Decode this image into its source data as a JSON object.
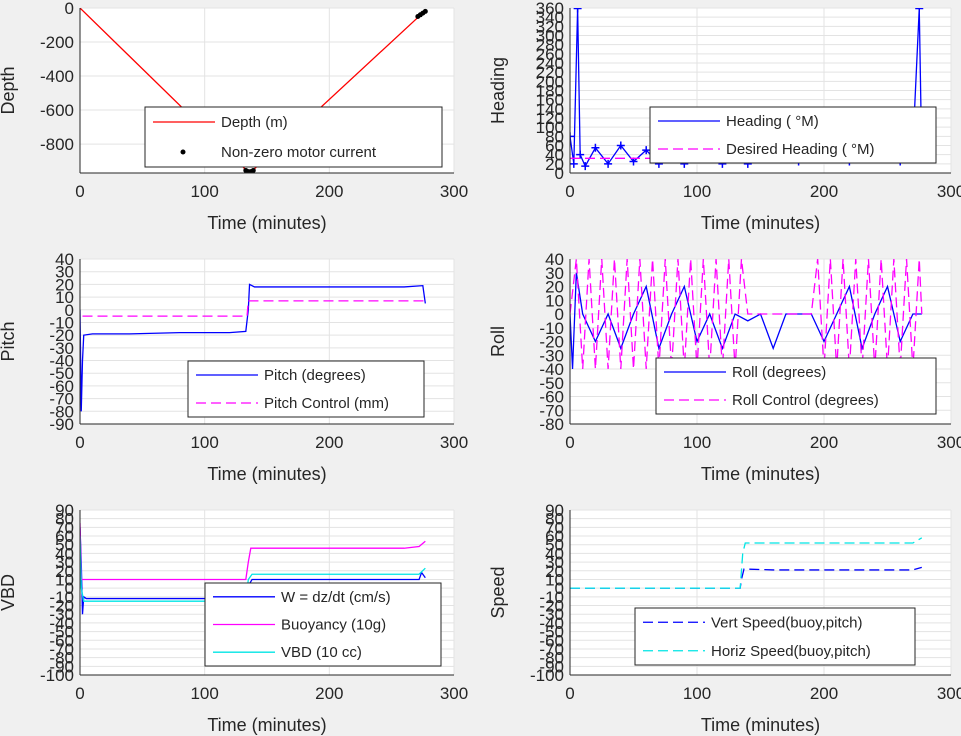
{
  "chart_data": [
    {
      "type": "line",
      "xlabel": "Time (minutes)",
      "ylabel": "Depth",
      "xlim": [
        0,
        300
      ],
      "ylim": [
        -970,
        0
      ],
      "xticks": [
        "0",
        "100",
        "200",
        "300"
      ],
      "yticks": [
        "0",
        "-200",
        "-400",
        "-600",
        "-800"
      ],
      "grid": true,
      "legend_position": "bottom-right",
      "series": [
        {
          "name": "Depth (m)",
          "color": "#ff0000",
          "style": "solid",
          "x": [
            0,
            135,
            137,
            277
          ],
          "y": [
            0,
            -965,
            -965,
            -15
          ]
        },
        {
          "name": "Non-zero motor current",
          "color": "#000000",
          "style": "marker",
          "x": [
            133,
            135,
            137,
            139,
            271,
            273,
            275,
            277
          ],
          "y": [
            -955,
            -962,
            -962,
            -955,
            -50,
            -40,
            -30,
            -20
          ]
        }
      ]
    },
    {
      "type": "line",
      "xlabel": "Time (minutes)",
      "ylabel": "Heading",
      "xlim": [
        0,
        300
      ],
      "ylim": [
        0,
        360
      ],
      "xticks": [
        "0",
        "100",
        "200",
        "300"
      ],
      "yticks": [
        "0",
        "20",
        "40",
        "60",
        "80",
        "100",
        "120",
        "140",
        "160",
        "180",
        "200",
        "220",
        "240",
        "260",
        "280",
        "300",
        "320",
        "340",
        "360"
      ],
      "grid": true,
      "legend_position": "bottom-right",
      "series": [
        {
          "name": "Heading ( °M)",
          "color": "#0000ff",
          "style": "marker-line",
          "x": [
            0,
            3,
            6,
            8,
            12,
            20,
            30,
            40,
            50,
            60,
            70,
            80,
            85,
            88,
            90,
            95,
            100,
            110,
            120,
            130,
            135,
            140,
            150,
            160,
            170,
            180,
            190,
            200,
            210,
            220,
            230,
            240,
            250,
            260,
            270,
            275,
            277
          ],
          "y": [
            80,
            20,
            359,
            40,
            15,
            55,
            20,
            60,
            25,
            50,
            20,
            70,
            120,
            60,
            20,
            90,
            30,
            60,
            20,
            55,
            90,
            20,
            50,
            30,
            45,
            25,
            50,
            30,
            45,
            25,
            50,
            30,
            45,
            25,
            60,
            359,
            30
          ]
        },
        {
          "name": "Desired Heading ( °M)",
          "color": "#ff00ff",
          "style": "dashed",
          "x": [
            0,
            50,
            100,
            150,
            200,
            250,
            277
          ],
          "y": [
            32,
            32,
            32,
            32,
            32,
            32,
            32
          ]
        }
      ]
    },
    {
      "type": "line",
      "xlabel": "Time (minutes)",
      "ylabel": "Pitch",
      "xlim": [
        0,
        300
      ],
      "ylim": [
        -90,
        40
      ],
      "xticks": [
        "0",
        "100",
        "200",
        "300"
      ],
      "yticks": [
        "40",
        "30",
        "20",
        "10",
        "0",
        "-10",
        "-20",
        "-30",
        "-40",
        "-50",
        "-60",
        "-70",
        "-80",
        "-90"
      ],
      "grid": true,
      "legend_position": "bottom-right",
      "series": [
        {
          "name": "Pitch (degrees)",
          "color": "#0000ff",
          "style": "solid",
          "x": [
            0,
            1,
            2,
            3,
            10,
            40,
            80,
            120,
            133,
            135,
            136,
            140,
            180,
            220,
            260,
            275,
            277
          ],
          "y": [
            0,
            -80,
            -40,
            -20,
            -19,
            -19,
            -18,
            -18,
            -17,
            0,
            20,
            18,
            18,
            18,
            18,
            19,
            5
          ]
        },
        {
          "name": "Pitch Control (mm)",
          "color": "#ff00ff",
          "style": "dashed",
          "x": [
            2,
            134,
            135,
            277
          ],
          "y": [
            -5,
            -5,
            7,
            7
          ]
        }
      ]
    },
    {
      "type": "line",
      "xlabel": "Time (minutes)",
      "ylabel": "Roll",
      "xlim": [
        0,
        300
      ],
      "ylim": [
        -80,
        40
      ],
      "xticks": [
        "0",
        "100",
        "200",
        "300"
      ],
      "yticks": [
        "40",
        "30",
        "20",
        "10",
        "0",
        "-10",
        "-20",
        "-30",
        "-40",
        "-50",
        "-60",
        "-70",
        "-80"
      ],
      "grid": true,
      "legend_position": "bottom-right",
      "series": [
        {
          "name": "Roll (degrees)",
          "color": "#0000ff",
          "style": "solid",
          "x": [
            0,
            2,
            5,
            10,
            20,
            30,
            40,
            50,
            60,
            70,
            80,
            90,
            100,
            110,
            120,
            130,
            140,
            150,
            160,
            170,
            180,
            190,
            200,
            210,
            220,
            230,
            240,
            250,
            260,
            270,
            277
          ],
          "y": [
            0,
            -40,
            30,
            0,
            -20,
            0,
            -25,
            0,
            20,
            -25,
            0,
            20,
            -20,
            0,
            -25,
            0,
            -5,
            0,
            -25,
            0,
            0,
            0,
            -20,
            0,
            20,
            -25,
            0,
            20,
            -20,
            0,
            0
          ]
        },
        {
          "name": "Roll Control (degrees)",
          "color": "#ff00ff",
          "style": "dashed",
          "x": [
            0,
            5,
            10,
            15,
            20,
            25,
            30,
            35,
            40,
            45,
            50,
            55,
            60,
            65,
            70,
            75,
            80,
            85,
            90,
            95,
            100,
            105,
            110,
            115,
            120,
            125,
            130,
            135,
            140,
            150,
            160,
            170,
            180,
            190,
            195,
            200,
            205,
            210,
            215,
            220,
            225,
            230,
            235,
            240,
            245,
            250,
            255,
            260,
            265,
            270,
            275,
            277
          ],
          "y": [
            0,
            40,
            -40,
            40,
            -40,
            40,
            -40,
            40,
            -40,
            40,
            -40,
            40,
            -40,
            40,
            -40,
            40,
            -40,
            40,
            -40,
            40,
            -40,
            40,
            -40,
            40,
            -40,
            40,
            -40,
            40,
            0,
            0,
            0,
            0,
            0,
            0,
            40,
            -40,
            40,
            -40,
            40,
            -40,
            40,
            -40,
            40,
            -40,
            40,
            -40,
            40,
            -40,
            40,
            -40,
            40,
            0
          ]
        }
      ]
    },
    {
      "type": "line",
      "xlabel": "Time (minutes)",
      "ylabel": "VBD",
      "xlim": [
        0,
        300
      ],
      "ylim": [
        -100,
        90
      ],
      "xticks": [
        "0",
        "100",
        "200",
        "300"
      ],
      "yticks": [
        "90",
        "80",
        "70",
        "60",
        "50",
        "40",
        "30",
        "20",
        "10",
        "0",
        "-10",
        "-20",
        "-30",
        "-40",
        "-50",
        "-60",
        "-70",
        "-80",
        "-90",
        "-100"
      ],
      "grid": true,
      "legend_position": "bottom-right",
      "series": [
        {
          "name": "W = dz/dt (cm/s)",
          "color": "#0000ff",
          "style": "solid",
          "x": [
            0,
            1,
            2,
            3,
            5,
            20,
            60,
            100,
            133,
            134,
            136,
            138,
            180,
            220,
            260,
            272,
            274,
            277
          ],
          "y": [
            70,
            30,
            -30,
            -10,
            -12,
            -12,
            -12,
            -12,
            -12,
            -5,
            5,
            10,
            10,
            10,
            10,
            10,
            18,
            12
          ]
        },
        {
          "name": "Buoyancy (10g)",
          "color": "#ff00ff",
          "style": "solid",
          "x": [
            0,
            1,
            3,
            133,
            135,
            137,
            180,
            220,
            260,
            272,
            277
          ],
          "y": [
            75,
            10,
            10,
            10,
            30,
            46,
            46,
            46,
            46,
            48,
            54
          ]
        },
        {
          "name": "VBD (10 cc)",
          "color": "#00e5e5",
          "style": "solid",
          "x": [
            0,
            1,
            3,
            10,
            60,
            100,
            133,
            135,
            138,
            180,
            220,
            260,
            272,
            277
          ],
          "y": [
            60,
            0,
            -15,
            -15,
            -15,
            -15,
            -15,
            10,
            16,
            16,
            16,
            16,
            16,
            23
          ]
        }
      ]
    },
    {
      "type": "line",
      "xlabel": "Time (minutes)",
      "ylabel": "Speed",
      "xlim": [
        0,
        300
      ],
      "ylim": [
        -100,
        90
      ],
      "xticks": [
        "0",
        "100",
        "200",
        "300"
      ],
      "yticks": [
        "90",
        "80",
        "70",
        "60",
        "50",
        "40",
        "30",
        "20",
        "10",
        "0",
        "-10",
        "-20",
        "-30",
        "-40",
        "-50",
        "-60",
        "-70",
        "-80",
        "-90",
        "-100"
      ],
      "grid": true,
      "legend_position": "bottom-right",
      "series": [
        {
          "name": "Vert Speed(buoy,pitch)",
          "color": "#0000ff",
          "style": "dashed",
          "x": [
            0,
            134,
            135,
            137,
            160,
            200,
            240,
            270,
            277
          ],
          "y": [
            0,
            0,
            10,
            22,
            21,
            21,
            21,
            21,
            24
          ]
        },
        {
          "name": "Horiz Speed(buoy,pitch)",
          "color": "#00e5e5",
          "style": "dashed",
          "x": [
            0,
            134,
            136,
            138,
            160,
            200,
            240,
            270,
            277
          ],
          "y": [
            0,
            0,
            40,
            52,
            52,
            52,
            52,
            52,
            58
          ]
        }
      ]
    }
  ]
}
